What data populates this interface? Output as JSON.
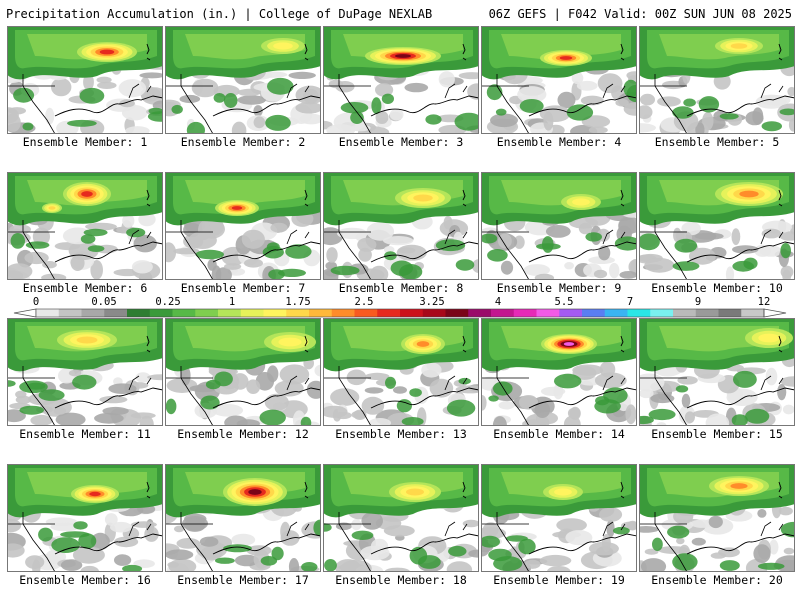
{
  "header": {
    "left_title": "Precipitation Accumulation (in.) | College of DuPage NEXLAB",
    "right_title": "06Z GEFS | F042 Valid: 00Z SUN JUN 08 2025"
  },
  "colorbar": {
    "tick_labels": [
      "0",
      "0.05",
      "0.25",
      "1",
      "1.75",
      "2.5",
      "3.25",
      "4",
      "5.5",
      "7",
      "9",
      "12"
    ],
    "colors": [
      "#e8e8e8",
      "#c4c4c4",
      "#a8a8a8",
      "#8a8a8a",
      "#2e7d32",
      "#3a9a3a",
      "#57b947",
      "#7fce4f",
      "#b4e55a",
      "#e6f25a",
      "#fff45e",
      "#ffd84a",
      "#ffb83a",
      "#ff8c2a",
      "#f95a20",
      "#e62a1e",
      "#cc101c",
      "#a8081a",
      "#7a0418",
      "#9a0a6a",
      "#c3168f",
      "#e62ab7",
      "#f25ae6",
      "#a45af2",
      "#5a7ef2",
      "#3ab4f2",
      "#2ae6e6",
      "#7af0f0",
      "#bababa",
      "#9a9a9a",
      "#7a7a7a",
      "#c8c8c8"
    ]
  },
  "members": [
    {
      "label": "Ensemble Member: 1"
    },
    {
      "label": "Ensemble Member: 2"
    },
    {
      "label": "Ensemble Member: 3"
    },
    {
      "label": "Ensemble Member: 4"
    },
    {
      "label": "Ensemble Member: 5"
    },
    {
      "label": "Ensemble Member: 6"
    },
    {
      "label": "Ensemble Member: 7"
    },
    {
      "label": "Ensemble Member: 8"
    },
    {
      "label": "Ensemble Member: 9"
    },
    {
      "label": "Ensemble Member: 10"
    },
    {
      "label": "Ensemble Member: 11"
    },
    {
      "label": "Ensemble Member: 12"
    },
    {
      "label": "Ensemble Member: 13"
    },
    {
      "label": "Ensemble Member: 14"
    },
    {
      "label": "Ensemble Member: 15"
    },
    {
      "label": "Ensemble Member: 16"
    },
    {
      "label": "Ensemble Member: 17"
    },
    {
      "label": "Ensemble Member: 18"
    },
    {
      "label": "Ensemble Member: 19"
    },
    {
      "label": "Ensemble Member: 20"
    }
  ]
}
